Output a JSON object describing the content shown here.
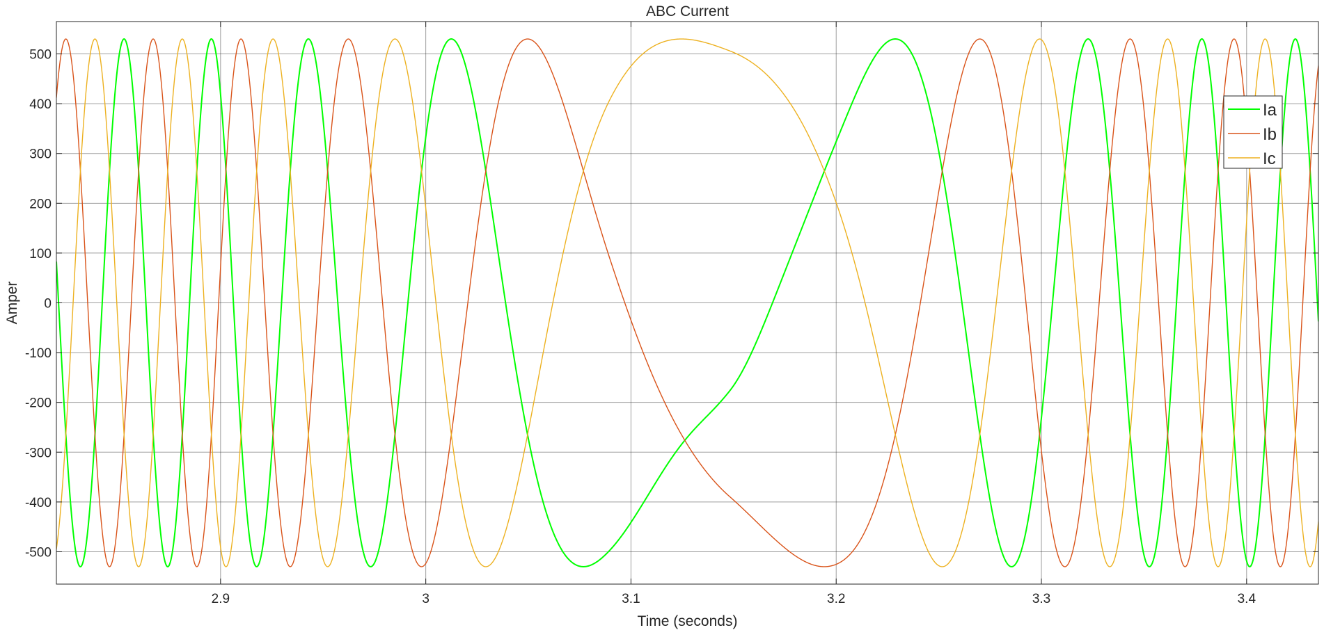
{
  "chart_data": {
    "type": "line",
    "title": "ABC Current",
    "xlabel": "Time (seconds)",
    "ylabel": "Amper",
    "xlim": [
      2.82,
      3.435
    ],
    "ylim": [
      -565,
      565
    ],
    "xticks": [
      2.9,
      3.0,
      3.1,
      3.2,
      3.3,
      3.4
    ],
    "xtick_labels": [
      "2.9",
      "3",
      "3.1",
      "3.2",
      "3.3",
      "3.4"
    ],
    "yticks": [
      500,
      400,
      300,
      200,
      100,
      0,
      -100,
      -200,
      -300,
      -400,
      -500
    ],
    "ytick_labels": [
      "500",
      "400",
      "300",
      "200",
      "100",
      "0",
      "-100",
      "-200",
      "-300",
      "-400",
      "-500"
    ],
    "grid": true,
    "legend_position": "top-right",
    "amplitude": 530,
    "series": [
      {
        "name": "Ia",
        "color": "#00ff00",
        "phase_offset_deg": 0,
        "dc_dip_center": 3.148,
        "dc_dip_peak": -60
      },
      {
        "name": "Ib",
        "color": "#d95319",
        "phase_offset_deg": -120
      },
      {
        "name": "Ic",
        "color": "#edb120",
        "phase_offset_deg": 120
      }
    ],
    "frequency_profile": [
      {
        "time": 2.82,
        "freq_hz": 23.5
      },
      {
        "time": 2.9,
        "freq_hz": 23.5
      },
      {
        "time": 2.97,
        "freq_hz": 15.0
      },
      {
        "time": 3.03,
        "freq_hz": 9.0
      },
      {
        "time": 3.09,
        "freq_hz": 3.8
      },
      {
        "time": 3.148,
        "freq_hz": 1.6
      },
      {
        "time": 3.2,
        "freq_hz": 3.8
      },
      {
        "time": 3.26,
        "freq_hz": 9.0
      },
      {
        "time": 3.32,
        "freq_hz": 15.0
      },
      {
        "time": 3.38,
        "freq_hz": 21.0
      },
      {
        "time": 3.435,
        "freq_hz": 23.5
      }
    ]
  }
}
